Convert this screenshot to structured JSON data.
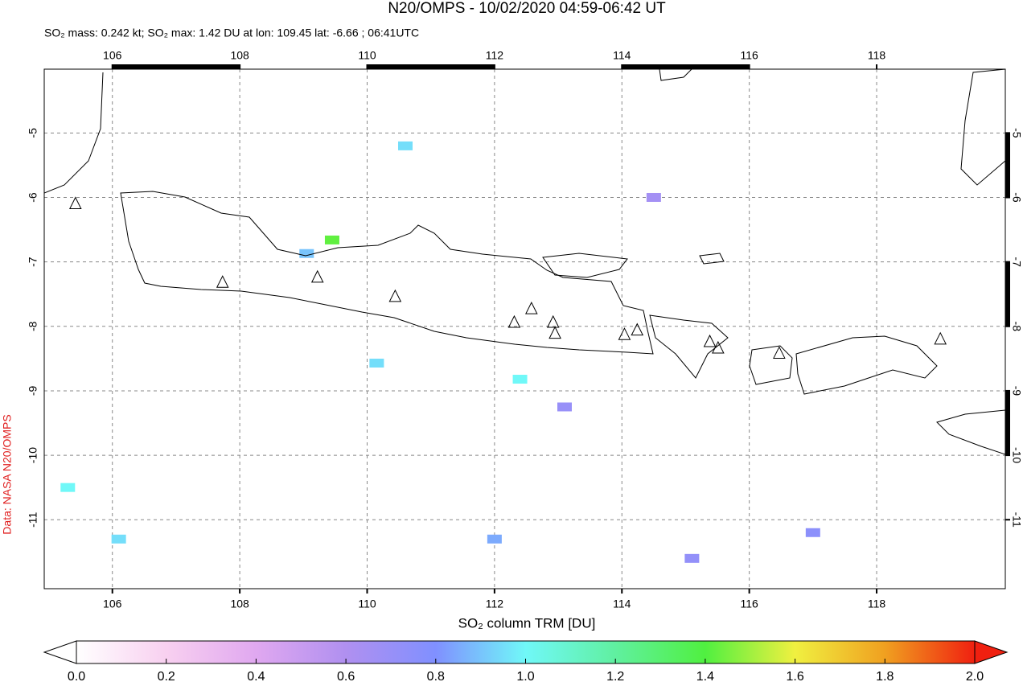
{
  "map": {
    "title": "N20/OMPS - 10/02/2020 04:59-06:42 UT",
    "subtitle": "SO₂ mass: 0.242 kt; SO₂ max: 1.42 DU at lon: 109.45 lat: -6.66 ; 06:41UTC",
    "credit": "Data: NASA N20/OMPS",
    "xlim": [
      104.93,
      120.02
    ],
    "ylim": [
      -12.07,
      -4.01
    ],
    "xticks": [
      106,
      108,
      110,
      112,
      114,
      116,
      118
    ],
    "yticks": [
      -5,
      -6,
      -7,
      -8,
      -9,
      -10,
      -11
    ],
    "grid": true,
    "volcanoes": {
      "lon": [
        105.42,
        107.73,
        109.22,
        110.44,
        112.31,
        112.58,
        112.92,
        112.95,
        114.04,
        114.24,
        115.38,
        115.51,
        116.47,
        119.0
      ],
      "lat": [
        -6.1,
        -7.32,
        -7.24,
        -7.54,
        -7.94,
        -7.73,
        -7.94,
        -8.11,
        -8.13,
        -8.06,
        -8.24,
        -8.34,
        -8.42,
        -8.2
      ]
    },
    "pixels": {
      "lon": [
        109.45,
        110.6,
        109.05,
        112.4,
        110.15,
        105.3,
        115.1,
        112.0,
        113.1,
        114.5,
        117.0,
        106.1
      ],
      "lat": [
        -6.66,
        -5.2,
        -6.87,
        -8.82,
        -8.57,
        -10.5,
        -11.6,
        -11.3,
        -9.25,
        -6.0,
        -11.2,
        -11.3
      ],
      "values": [
        1.42,
        0.95,
        0.9,
        1.0,
        0.95,
        1.0,
        0.72,
        0.85,
        0.7,
        0.65,
        0.75,
        0.95
      ]
    },
    "colorbar": {
      "label": "SO₂ column TRM [DU]",
      "lim": [
        0,
        2
      ],
      "ticks": [
        {
          "value": 0,
          "label": "0.0"
        },
        {
          "value": 0.2,
          "label": "0.2"
        },
        {
          "value": 0.4,
          "label": "0.4"
        },
        {
          "value": 0.6,
          "label": "0.6"
        },
        {
          "value": 0.8,
          "label": "0.8"
        },
        {
          "value": 1.0,
          "label": "1.0"
        },
        {
          "value": 1.2,
          "label": "1.2"
        },
        {
          "value": 1.4,
          "label": "1.4"
        },
        {
          "value": 1.6,
          "label": "1.6"
        },
        {
          "value": 1.8,
          "label": "1.8"
        },
        {
          "value": 2.0,
          "label": "2.0"
        }
      ]
    }
  }
}
